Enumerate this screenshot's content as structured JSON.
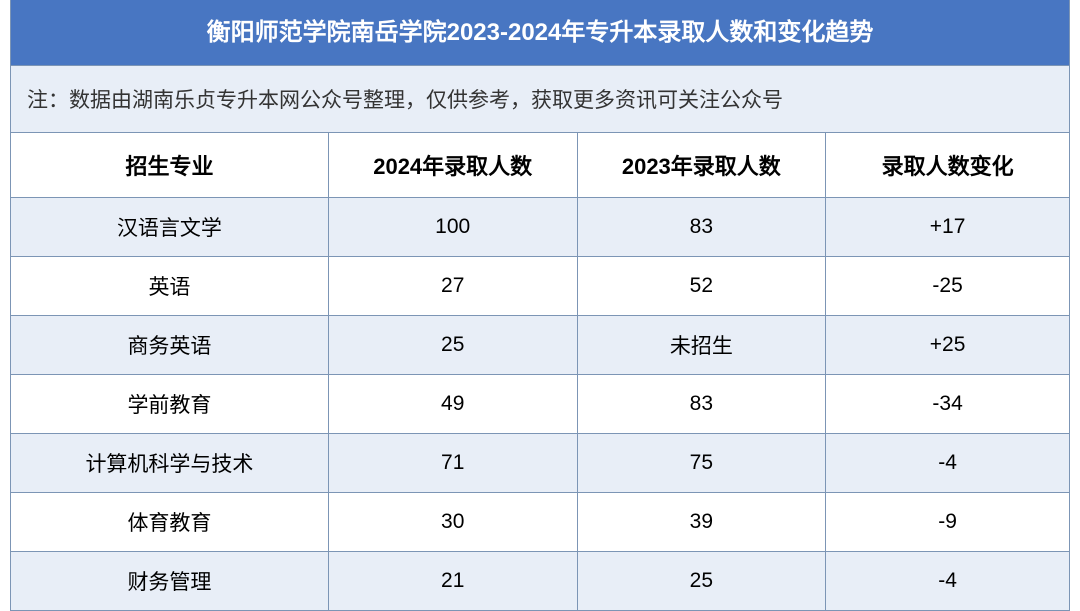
{
  "title": "衡阳师范学院南岳学院2023-2024年专升本录取人数和变化趋势",
  "note": "注：数据由湖南乐贞专升本网公众号整理，仅供参考，获取更多资讯可关注公众号",
  "colors": {
    "header_bg": "#4876c2",
    "header_text": "#ffffff",
    "alt_row_bg": "#e8eef7",
    "row_bg": "#ffffff",
    "border": "#7c95b5",
    "text": "#333333"
  },
  "typography": {
    "title_fontsize": 24,
    "note_fontsize": 21,
    "header_fontsize": 22,
    "cell_fontsize": 21,
    "font_family": "Microsoft YaHei"
  },
  "columns": [
    {
      "key": "major",
      "label": "招生专业",
      "width": "30%"
    },
    {
      "key": "y2024",
      "label": "2024年录取人数",
      "width": "23.5%"
    },
    {
      "key": "y2023",
      "label": "2023年录取人数",
      "width": "23.5%"
    },
    {
      "key": "change",
      "label": "录取人数变化",
      "width": "23%"
    }
  ],
  "rows": [
    {
      "major": "汉语言文学",
      "y2024": "100",
      "y2023": "83",
      "change": "+17"
    },
    {
      "major": "英语",
      "y2024": "27",
      "y2023": "52",
      "change": "-25"
    },
    {
      "major": "商务英语",
      "y2024": "25",
      "y2023": "未招生",
      "change": "+25"
    },
    {
      "major": "学前教育",
      "y2024": "49",
      "y2023": "83",
      "change": "-34"
    },
    {
      "major": "计算机科学与技术",
      "y2024": "71",
      "y2023": "75",
      "change": "-4"
    },
    {
      "major": "体育教育",
      "y2024": "30",
      "y2023": "39",
      "change": "-9"
    },
    {
      "major": "财务管理",
      "y2024": "21",
      "y2023": "25",
      "change": "-4"
    }
  ]
}
